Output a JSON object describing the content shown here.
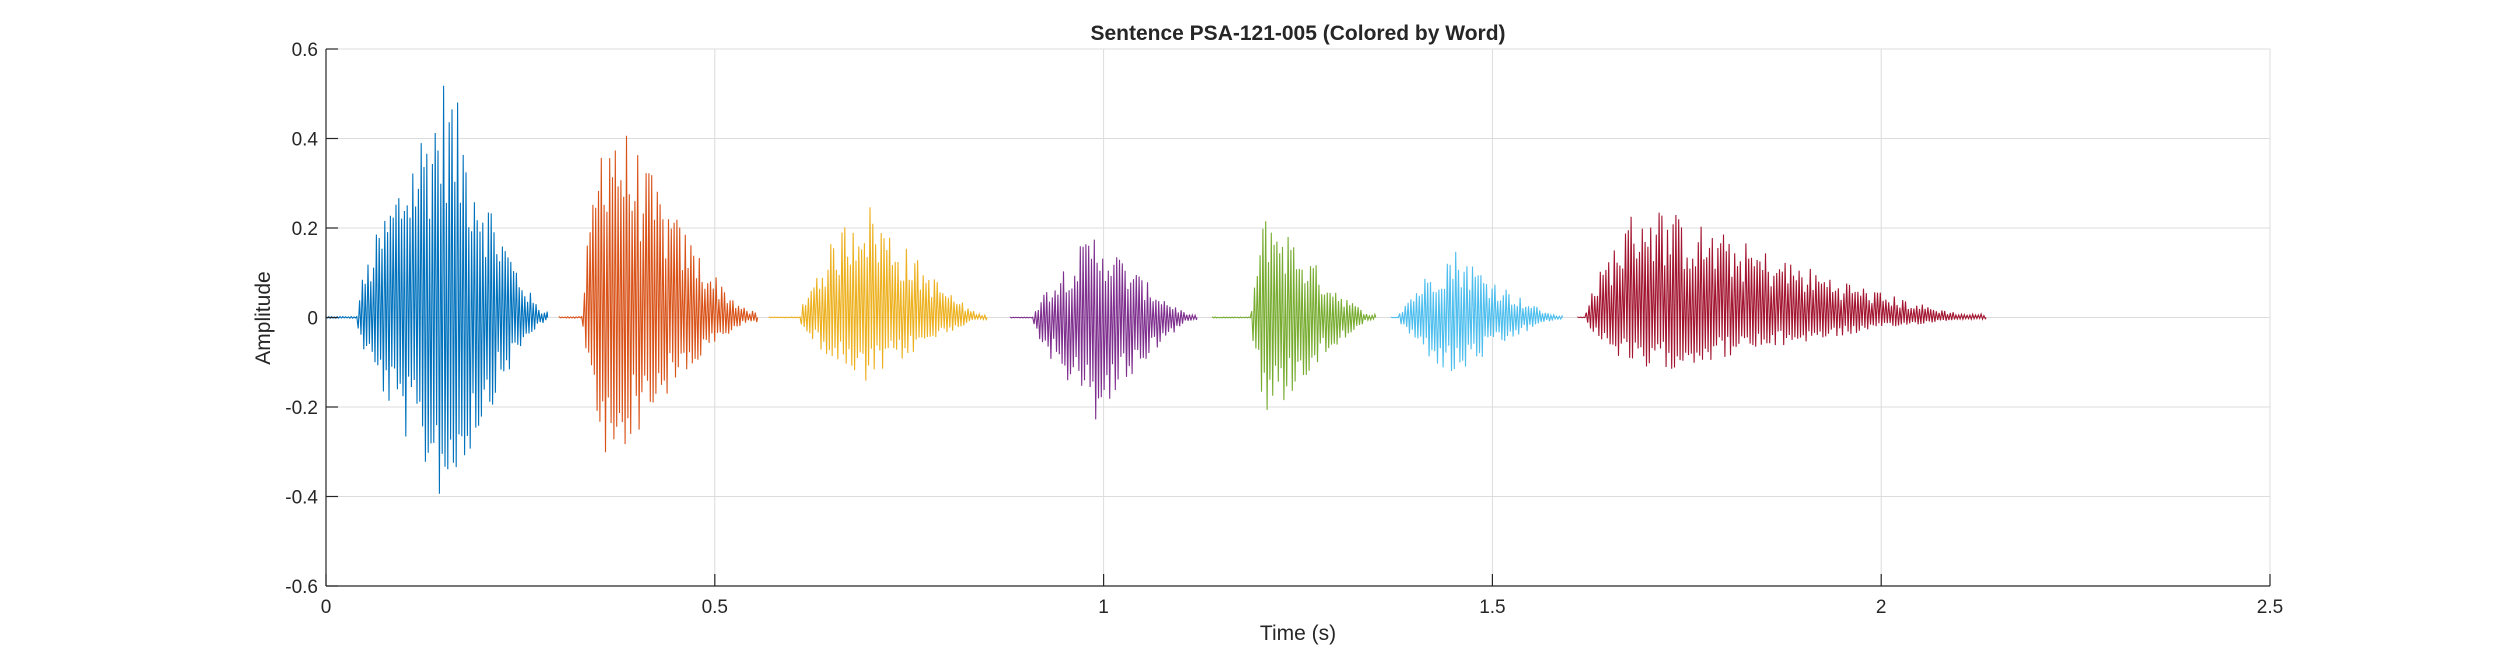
{
  "chart_data": {
    "type": "line",
    "title": "Sentence PSA-121-005 (Colored by Word)",
    "xlabel": "Time (s)",
    "ylabel": "Amplitude",
    "xlim": [
      0,
      2.5
    ],
    "ylim": [
      -0.6,
      0.6
    ],
    "xticks": [
      "0",
      "0.5",
      "1",
      "1.5",
      "2",
      "2.5"
    ],
    "yticks": [
      "0.6",
      "0.4",
      "0.2",
      "0",
      "-0.2",
      "-0.4",
      "-0.6"
    ],
    "grid": true,
    "series": [
      {
        "color": "#0072BD",
        "start": 0.0,
        "end": 0.285,
        "attack": 0.04,
        "peak_time": 0.155,
        "max": 0.56,
        "min": -0.43
      },
      {
        "color": "#D95319",
        "start": 0.3,
        "end": 0.555,
        "attack": 0.33,
        "peak_time": 0.36,
        "max": 0.51,
        "min": -0.35
      },
      {
        "color": "#EDB120",
        "start": 0.57,
        "end": 0.85,
        "attack": 0.61,
        "peak_time": 0.69,
        "max": 0.28,
        "min": -0.16
      },
      {
        "color": "#7E2F8E",
        "start": 0.88,
        "end": 1.12,
        "attack": 0.91,
        "peak_time": 0.99,
        "max": 0.2,
        "min": -0.24
      },
      {
        "color": "#77AC30",
        "start": 1.14,
        "end": 1.35,
        "attack": 1.19,
        "peak_time": 1.21,
        "max": 0.26,
        "min": -0.24
      },
      {
        "color": "#4DBEEE",
        "start": 1.37,
        "end": 1.59,
        "attack": 1.38,
        "peak_time": 1.45,
        "max": 0.16,
        "min": -0.14
      },
      {
        "color": "#A2142F",
        "start": 1.61,
        "end": 2.135,
        "attack": 1.62,
        "peak_time": 1.69,
        "max": 0.27,
        "min": -0.13
      }
    ]
  }
}
